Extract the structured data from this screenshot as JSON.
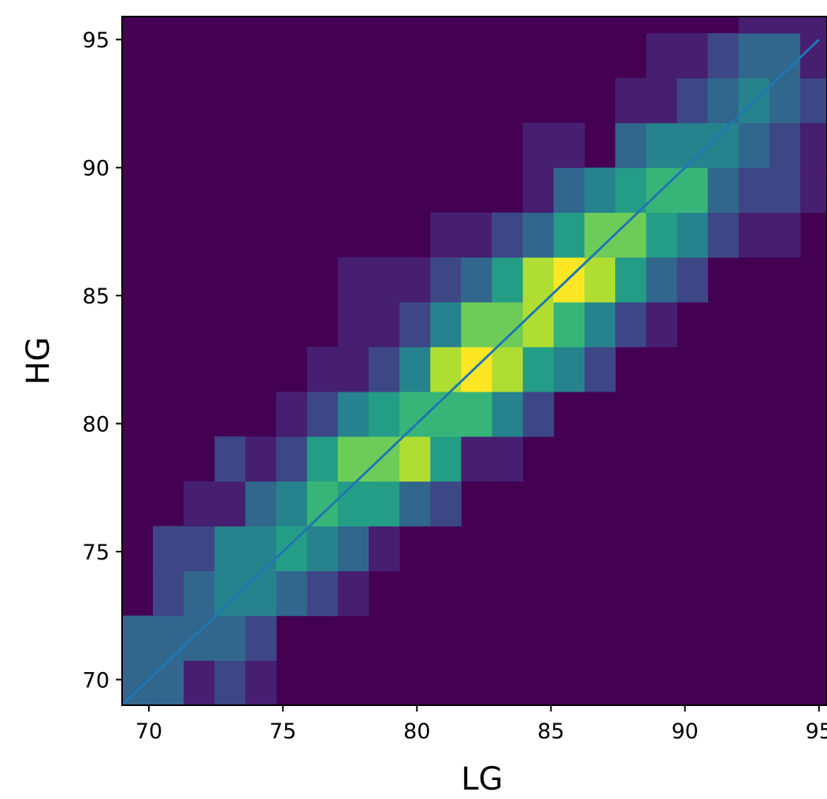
{
  "chart_data": {
    "type": "heatmap",
    "title": "",
    "xlabel": "LG",
    "ylabel": "HG",
    "xlim": [
      69,
      95.3
    ],
    "ylim": [
      69,
      95.9
    ],
    "x_ticks": [
      70,
      75,
      80,
      85,
      90,
      95
    ],
    "y_ticks": [
      70,
      75,
      80,
      85,
      90,
      95
    ],
    "x_tick_labels": [
      "70",
      "75",
      "80",
      "85",
      "90",
      "95"
    ],
    "y_tick_labels": [
      "70",
      "75",
      "80",
      "85",
      "90",
      "95"
    ],
    "x_edges": [
      69,
      70.15,
      71.3,
      72.45,
      73.6,
      74.75,
      75.9,
      77.05,
      78.2,
      79.35,
      80.5,
      81.65,
      82.8,
      83.95,
      85.1,
      86.25,
      87.4,
      88.55,
      89.7,
      90.85,
      92.0,
      93.15,
      94.3,
      95.3
    ],
    "y_edges": [
      69,
      70.75,
      72.5,
      74.25,
      76.0,
      77.75,
      79.5,
      81.25,
      83.0,
      84.75,
      86.5,
      88.25,
      90.0,
      91.75,
      93.5,
      95.25,
      95.9
    ],
    "colormap": "viridis",
    "counts": [
      [
        3,
        3,
        1,
        2,
        1,
        0,
        0,
        0,
        0,
        0,
        0,
        0,
        0,
        0,
        0,
        0,
        0,
        0,
        0,
        0,
        0,
        0,
        0
      ],
      [
        3,
        3,
        3,
        3,
        2,
        0,
        0,
        0,
        0,
        0,
        0,
        0,
        0,
        0,
        0,
        0,
        0,
        0,
        0,
        0,
        0,
        0,
        0
      ],
      [
        0,
        2,
        3,
        4,
        4,
        3,
        2,
        1,
        0,
        0,
        0,
        0,
        0,
        0,
        0,
        0,
        0,
        0,
        0,
        0,
        0,
        0,
        0
      ],
      [
        0,
        2,
        2,
        4,
        4,
        5,
        4,
        3,
        1,
        0,
        0,
        0,
        0,
        0,
        0,
        0,
        0,
        0,
        0,
        0,
        0,
        0,
        0
      ],
      [
        0,
        0,
        1,
        1,
        3,
        4,
        6,
        5,
        5,
        3,
        2,
        0,
        0,
        0,
        0,
        0,
        0,
        0,
        0,
        0,
        0,
        0,
        0
      ],
      [
        0,
        0,
        0,
        2,
        1,
        2,
        5,
        7,
        7,
        8,
        5,
        1,
        1,
        0,
        0,
        0,
        0,
        0,
        0,
        0,
        0,
        0,
        0
      ],
      [
        0,
        0,
        0,
        0,
        0,
        1,
        2,
        4,
        5,
        6,
        6,
        6,
        4,
        2,
        0,
        0,
        0,
        0,
        0,
        0,
        0,
        0,
        0
      ],
      [
        0,
        0,
        0,
        0,
        0,
        0,
        1,
        1,
        2,
        4,
        8,
        9,
        8,
        5,
        4,
        2,
        0,
        0,
        0,
        0,
        0,
        0,
        0
      ],
      [
        0,
        0,
        0,
        0,
        0,
        0,
        0,
        1,
        1,
        2,
        4,
        7,
        7,
        8,
        6,
        4,
        2,
        1,
        0,
        0,
        0,
        0,
        0
      ],
      [
        0,
        0,
        0,
        0,
        0,
        0,
        0,
        1,
        1,
        1,
        2,
        3,
        5,
        8,
        9,
        8,
        5,
        3,
        2,
        0,
        0,
        0,
        0
      ],
      [
        0,
        0,
        0,
        0,
        0,
        0,
        0,
        0,
        0,
        0,
        1,
        1,
        2,
        3,
        5,
        7,
        7,
        5,
        4,
        2,
        1,
        1,
        0
      ],
      [
        0,
        0,
        0,
        0,
        0,
        0,
        0,
        0,
        0,
        0,
        0,
        0,
        0,
        1,
        3,
        4,
        5,
        6,
        6,
        3,
        2,
        2,
        1
      ],
      [
        0,
        0,
        0,
        0,
        0,
        0,
        0,
        0,
        0,
        0,
        0,
        0,
        0,
        1,
        1,
        0,
        3,
        4,
        4,
        4,
        3,
        2,
        1
      ],
      [
        0,
        0,
        0,
        0,
        0,
        0,
        0,
        0,
        0,
        0,
        0,
        0,
        0,
        0,
        0,
        0,
        1,
        1,
        2,
        3,
        4,
        3,
        2
      ],
      [
        0,
        0,
        0,
        0,
        0,
        0,
        0,
        0,
        0,
        0,
        0,
        0,
        0,
        0,
        0,
        0,
        0,
        1,
        1,
        2,
        3,
        3,
        1
      ],
      [
        0,
        0,
        0,
        0,
        0,
        0,
        0,
        0,
        0,
        0,
        0,
        0,
        0,
        0,
        0,
        0,
        0,
        0,
        0,
        0,
        1,
        1,
        1
      ]
    ],
    "count_max": 9,
    "reference_line": {
      "x": [
        69,
        95
      ],
      "y": [
        69,
        95
      ],
      "color": "#1f77b4"
    },
    "grid": false,
    "legend": "none"
  }
}
